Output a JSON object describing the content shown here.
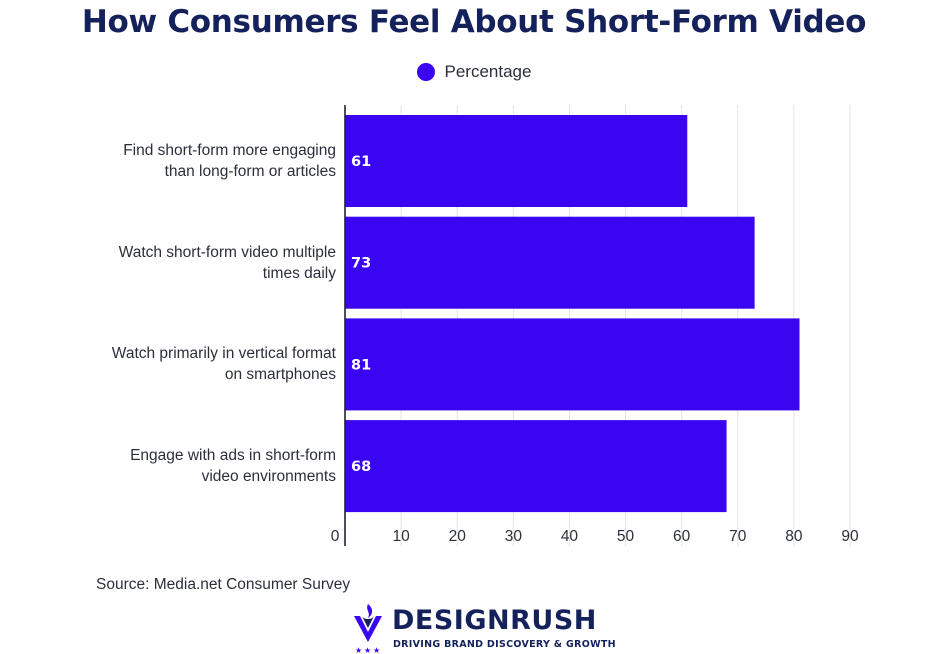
{
  "colors": {
    "bar": "#3a06f2",
    "title": "#14215a",
    "text": "#2b2f3a",
    "grid": "#e3e3e3",
    "axis": "#1f2430"
  },
  "chart_data": {
    "type": "bar",
    "orientation": "horizontal",
    "title": "How Consumers Feel About Short-Form Video",
    "legend": [
      "Percentage"
    ],
    "legend_position": "top-center",
    "categories": [
      [
        "Find short-form more engaging",
        "than long-form or articles"
      ],
      [
        "Watch short-form video multiple",
        "times daily"
      ],
      [
        "Watch primarily in vertical format",
        "on smartphones"
      ],
      [
        "Engage with ads in short-form",
        "video environments"
      ]
    ],
    "series": [
      {
        "name": "Percentage",
        "values": [
          61,
          73,
          81,
          68
        ]
      }
    ],
    "xlim": [
      0,
      90
    ],
    "xticks": [
      "0",
      "10",
      "20",
      "30",
      "40",
      "50",
      "60",
      "70",
      "80",
      "90"
    ],
    "grid": true,
    "data_labels": [
      "61",
      "73",
      "81",
      "68"
    ]
  },
  "footer": {
    "source": "Source: Media.net Consumer Survey",
    "brand_name": "DESIGNRUSH",
    "brand_tagline": "DRIVING BRAND DISCOVERY & GROWTH",
    "brand_icon": "designrush-logo-icon"
  }
}
